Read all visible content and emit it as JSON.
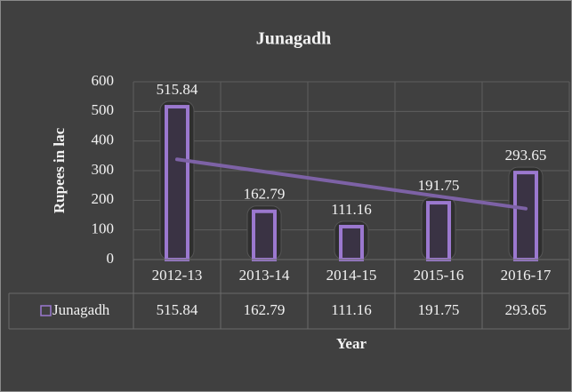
{
  "chart_data": {
    "type": "bar",
    "title": "Junagadh",
    "categories": [
      "2012-13",
      "2013-14",
      "2014-15",
      "2015-16",
      "2016-17"
    ],
    "series": [
      {
        "name": "Junagadh",
        "color": "#9b78cf",
        "values": [
          515.84,
          162.79,
          111.16,
          191.75,
          293.65
        ]
      }
    ],
    "ylim": [
      0,
      600
    ],
    "yticks": [
      0,
      100,
      200,
      300,
      400,
      500,
      600
    ],
    "ylabel": "Rupees in lac",
    "xlabel": "Year",
    "grid": true,
    "trendline": "linear",
    "data_table": true
  }
}
